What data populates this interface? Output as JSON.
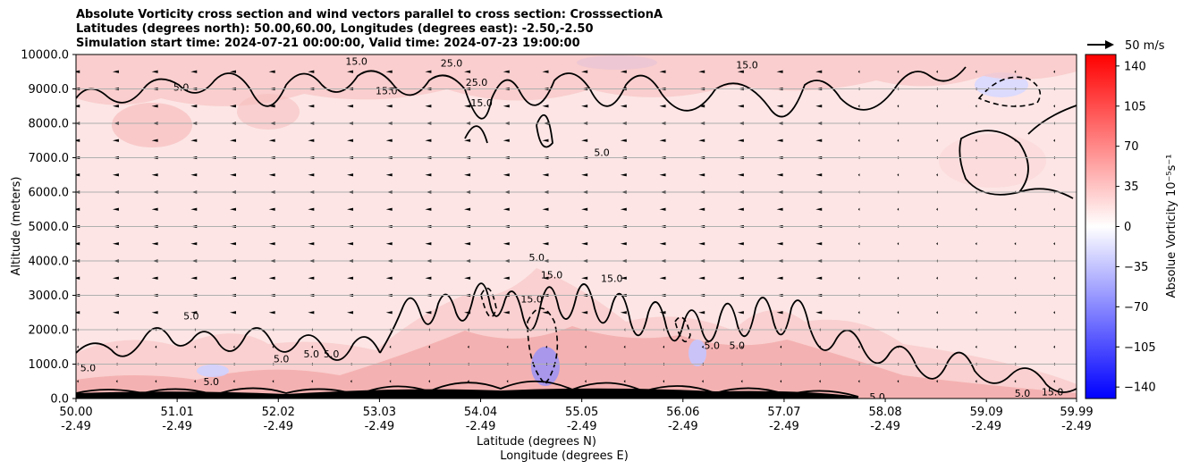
{
  "chart_data": {
    "type": "contour",
    "title_lines": [
      "Absolute Vorticity cross section and wind vectors parallel to cross section: CrosssectionA",
      "Latitudes (degrees north): 50.00,60.00, Longitudes (degrees east): -2.50,-2.50",
      "Simulation start time: 2024-07-21 00:00:00, Valid time: 2024-07-23 19:00:00"
    ],
    "ylabel": "Altitude (meters)",
    "xlabel_lines": [
      "Latitude (degrees N)",
      "Longitude (degrees E)"
    ],
    "ylim": [
      0,
      10000
    ],
    "xlim": [
      50.0,
      59.99
    ],
    "y_ticks": [
      {
        "value": 0,
        "label": "0.0"
      },
      {
        "value": 1000,
        "label": "1000.0"
      },
      {
        "value": 2000,
        "label": "2000.0"
      },
      {
        "value": 3000,
        "label": "3000.0"
      },
      {
        "value": 4000,
        "label": "4000.0"
      },
      {
        "value": 5000,
        "label": "5000.0"
      },
      {
        "value": 6000,
        "label": "6000.0"
      },
      {
        "value": 7000,
        "label": "7000.0"
      },
      {
        "value": 8000,
        "label": "8000.0"
      },
      {
        "value": 9000,
        "label": "9000.0"
      },
      {
        "value": 10000,
        "label": "10000.0"
      }
    ],
    "x_ticks": [
      {
        "lat": 50.0,
        "lat_label": "50.00",
        "lon_label": "-2.49"
      },
      {
        "lat": 51.01,
        "lat_label": "51.01",
        "lon_label": "-2.49"
      },
      {
        "lat": 52.02,
        "lat_label": "52.02",
        "lon_label": "-2.49"
      },
      {
        "lat": 53.03,
        "lat_label": "53.03",
        "lon_label": "-2.49"
      },
      {
        "lat": 54.04,
        "lat_label": "54.04",
        "lon_label": "-2.49"
      },
      {
        "lat": 55.05,
        "lat_label": "55.05",
        "lon_label": "-2.49"
      },
      {
        "lat": 56.06,
        "lat_label": "56.06",
        "lon_label": "-2.49"
      },
      {
        "lat": 57.07,
        "lat_label": "57.07",
        "lon_label": "-2.49"
      },
      {
        "lat": 58.08,
        "lat_label": "58.08",
        "lon_label": "-2.49"
      },
      {
        "lat": 59.09,
        "lat_label": "59.09",
        "lon_label": "-2.49"
      },
      {
        "lat": 59.99,
        "lat_label": "59.99",
        "lon_label": "-2.49"
      }
    ],
    "grid_horizontal": true,
    "quiver_key_label": "50 m/s",
    "colorbar": {
      "label": "Absolue Vorticity 10⁻⁵s⁻¹",
      "range": [
        -150,
        150
      ],
      "ticks": [
        {
          "value": 140,
          "label": "140"
        },
        {
          "value": 105,
          "label": "105"
        },
        {
          "value": 70,
          "label": "70"
        },
        {
          "value": 35,
          "label": "35"
        },
        {
          "value": 0,
          "label": "0"
        },
        {
          "value": -35,
          "label": "−35"
        },
        {
          "value": -70,
          "label": "−70"
        },
        {
          "value": -105,
          "label": "−105"
        },
        {
          "value": -140,
          "label": "−140"
        }
      ],
      "colors": {
        "neg": "#0000ff",
        "mid": "#ffffff",
        "pos": "#ff0000"
      }
    },
    "contour_labels": [
      {
        "lat": 50.12,
        "alt": 900,
        "text": "5.0"
      },
      {
        "lat": 51.15,
        "alt": 2400,
        "text": "5.0"
      },
      {
        "lat": 52.35,
        "alt": 1300,
        "text": "5.0"
      },
      {
        "lat": 52.55,
        "alt": 1300,
        "text": "5.0"
      },
      {
        "lat": 54.6,
        "alt": 4100,
        "text": "5.0"
      },
      {
        "lat": 54.75,
        "alt": 3600,
        "text": "15.0"
      },
      {
        "lat": 55.35,
        "alt": 3500,
        "text": "15.0"
      },
      {
        "lat": 54.55,
        "alt": 2900,
        "text": "15.0"
      },
      {
        "lat": 55.25,
        "alt": 7150,
        "text": "5.0"
      },
      {
        "lat": 51.05,
        "alt": 9050,
        "text": "5.0"
      },
      {
        "lat": 53.1,
        "alt": 8950,
        "text": "15.0"
      },
      {
        "lat": 54.0,
        "alt": 9200,
        "text": "25.0"
      },
      {
        "lat": 54.05,
        "alt": 8600,
        "text": "15.0"
      },
      {
        "lat": 56.7,
        "alt": 9700,
        "text": "15.0"
      },
      {
        "lat": 52.8,
        "alt": 9800,
        "text": "15.0"
      },
      {
        "lat": 53.75,
        "alt": 9750,
        "text": "25.0"
      },
      {
        "lat": 56.35,
        "alt": 1550,
        "text": "5.0"
      },
      {
        "lat": 56.6,
        "alt": 1550,
        "text": "5.0"
      },
      {
        "lat": 58.0,
        "alt": 50,
        "text": "5.0"
      },
      {
        "lat": 59.45,
        "alt": 150,
        "text": "5.0"
      },
      {
        "lat": 59.75,
        "alt": 200,
        "text": "15.0"
      },
      {
        "lat": 52.05,
        "alt": 1150,
        "text": "5.0"
      },
      {
        "lat": 51.35,
        "alt": 500,
        "text": "5.0"
      }
    ]
  }
}
